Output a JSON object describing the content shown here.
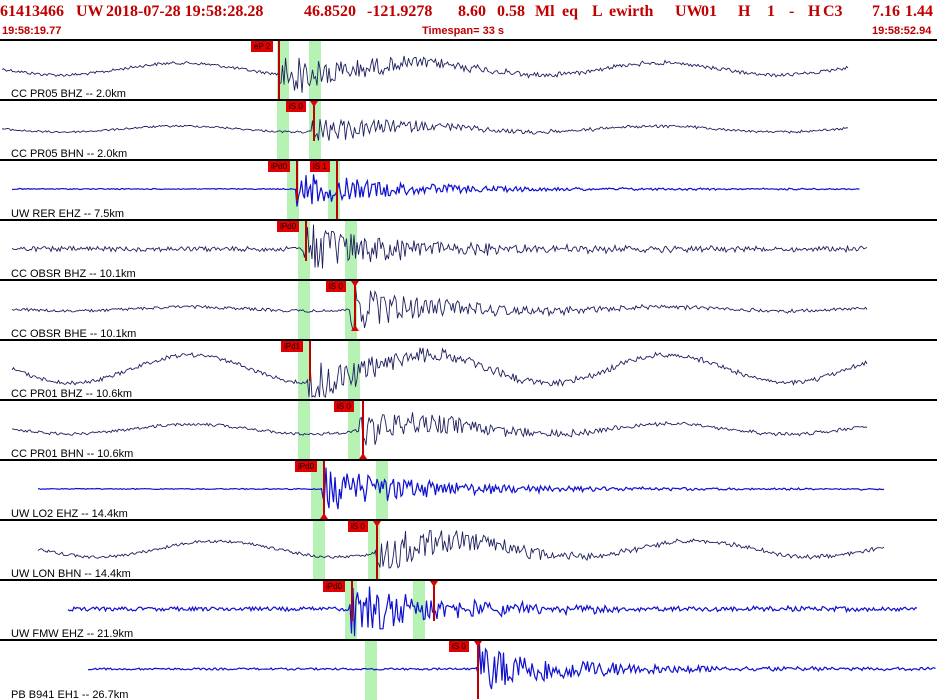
{
  "header": {
    "event_id": "61413466",
    "network": "UW",
    "origin_datetime": "2018-07-28 19:58:28.28",
    "latitude": "46.8520",
    "longitude": "-121.9278",
    "depth": "8.60",
    "magnitude": "0.58",
    "mag_type": "Ml",
    "event_type": "eq",
    "location_flag": "L",
    "analyst": "ewirth",
    "auth": "UW",
    "version": "01",
    "review": "H",
    "quality": "1",
    "dash": "-",
    "h": "H",
    "algorithm": "C3",
    "rms": "7.16",
    "gap_or_err": "1.44"
  },
  "subheader": {
    "start_time": "19:58:19.77",
    "timespan": "Timespan=  33 s",
    "end_time": "19:58:52.94"
  },
  "colors": {
    "trace_dark": "#202060",
    "trace_blue": "#1010d0",
    "pick_red": "#e00000",
    "window_green": "#aaf0a8",
    "header_red": "#c00000"
  },
  "channels": [
    {
      "label": "CC PR05 BHZ -- 2.0km",
      "style": "dark",
      "picks": [
        "eP 2"
      ]
    },
    {
      "label": "CC PR05 BHN -- 2.0km",
      "style": "dark",
      "picks": [
        "iS 0"
      ]
    },
    {
      "label": "UW RER EHZ -- 7.5km",
      "style": "blue",
      "picks": [
        "iPd0",
        "iS 1"
      ]
    },
    {
      "label": "CC OBSR BHZ -- 10.1km",
      "style": "dark",
      "picks": [
        "iPd0"
      ]
    },
    {
      "label": "CC OBSR BHE -- 10.1km",
      "style": "dark",
      "picks": [
        "iS 0"
      ]
    },
    {
      "label": "CC PR01 BHZ -- 10.6km",
      "style": "dark",
      "picks": [
        "iPd1"
      ]
    },
    {
      "label": "CC PR01 BHN -- 10.6km",
      "style": "dark",
      "picks": [
        "iS 0"
      ]
    },
    {
      "label": "UW LO2 EHZ -- 14.4km",
      "style": "blue",
      "picks": [
        "iPd0"
      ]
    },
    {
      "label": "UW LON BHN -- 14.4km",
      "style": "dark",
      "picks": [
        "iS 0"
      ]
    },
    {
      "label": "UW FMW EHZ -- 21.9km",
      "style": "blue",
      "picks": [
        "iPd0"
      ]
    },
    {
      "label": "PB B941 EH1 -- 26.7km",
      "style": "blue",
      "picks": [
        "iS 0"
      ]
    }
  ]
}
